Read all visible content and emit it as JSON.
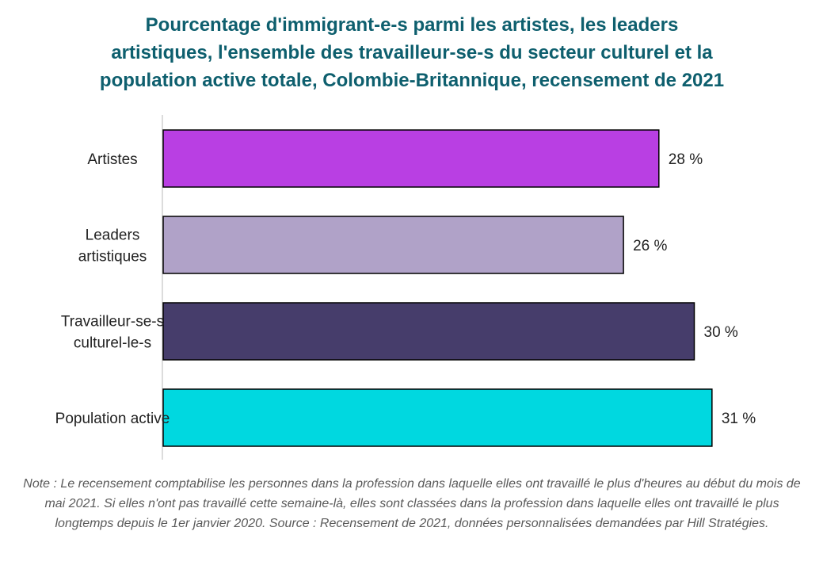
{
  "chart_data": {
    "type": "bar",
    "orientation": "horizontal",
    "title_lines": [
      "Pourcentage d'immigrant-e-s parmi les artistes, les leaders",
      "artistiques, l'ensemble des travailleur-se-s du secteur culturel et la",
      "population active totale, Colombie-Britannique, recensement de 2021"
    ],
    "categories": [
      [
        "Artistes"
      ],
      [
        "Leaders",
        "artistiques"
      ],
      [
        "Travailleur-se-s",
        "culturel-le-s"
      ],
      [
        "Population active"
      ]
    ],
    "values": [
      28,
      26,
      30,
      31
    ],
    "value_labels": [
      "28 %",
      "26 %",
      "30 %",
      "31 %"
    ],
    "colors": [
      "#b93fe3",
      "#b0a2c8",
      "#463d6b",
      "#00d8e0"
    ],
    "xlim": [
      0,
      35
    ],
    "grid": false,
    "legend": "none",
    "note": "Note : Le recensement comptabilise les personnes dans la profession dans laquelle elles ont travaillé le plus d'heures au début du mois de mai 2021. Si elles n'ont pas travaillé cette semaine-là, elles sont classées dans la profession dans laquelle elles ont travaillé le plus longtemps depuis le 1er janvier 2020. Source : Recensement de 2021, données personnalisées demandées par Hill Stratégies."
  }
}
